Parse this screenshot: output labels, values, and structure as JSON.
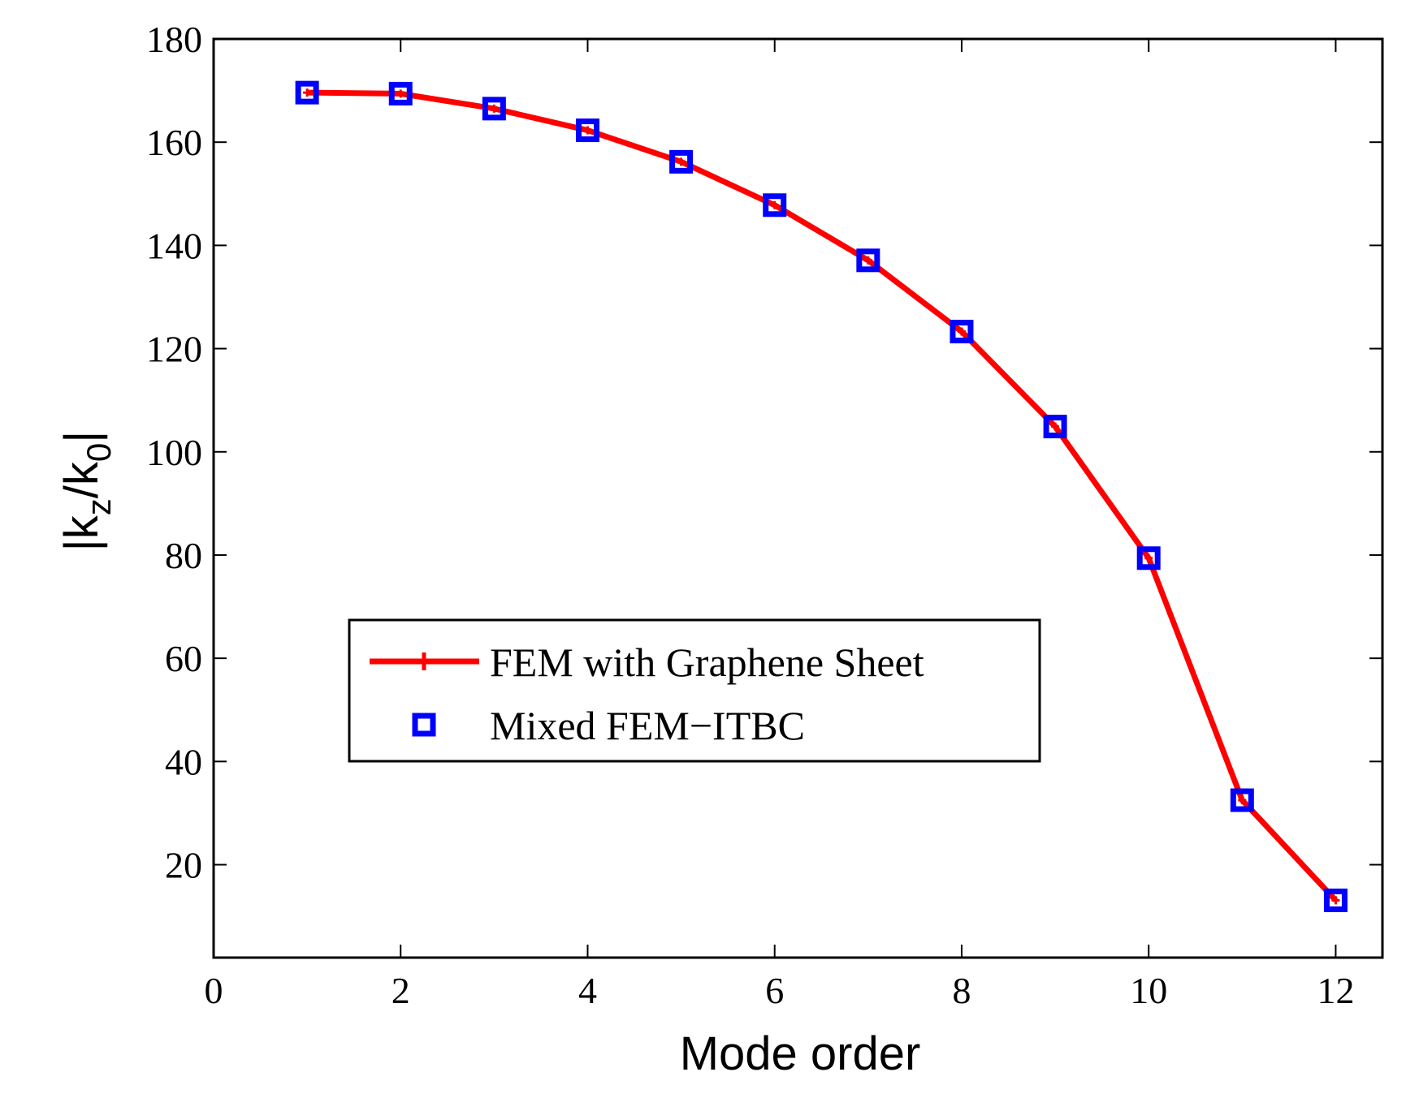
{
  "chart_data": {
    "type": "line",
    "title": "",
    "xlabel": "Mode order",
    "ylabel_main": "|k",
    "ylabel_sub1": "z",
    "ylabel_mid": "/k",
    "ylabel_sub2": "0",
    "ylabel_end": "|",
    "xlim": [
      0,
      12.5
    ],
    "ylim": [
      2,
      180
    ],
    "xticks": [
      0,
      2,
      4,
      6,
      8,
      10,
      12
    ],
    "yticks": [
      20,
      40,
      60,
      80,
      100,
      120,
      140,
      160,
      180
    ],
    "grid": false,
    "legend_position": "center-left",
    "series": [
      {
        "name": "FEM with Graphene Sheet",
        "color": "#ff0000",
        "marker": "plus",
        "x": [
          1,
          2,
          3,
          4,
          5,
          6,
          7,
          8,
          9,
          10,
          11,
          12
        ],
        "y": [
          169.6,
          169.4,
          166.5,
          162.3,
          156.2,
          147.8,
          137.1,
          123.3,
          104.9,
          79.4,
          32.5,
          13.1
        ]
      },
      {
        "name": "Mixed FEM−ITBC",
        "color": "#0000ff",
        "marker": "square",
        "x": [
          1,
          2,
          3,
          4,
          5,
          6,
          7,
          8,
          9,
          10,
          11,
          12
        ],
        "y": [
          169.6,
          169.4,
          166.5,
          162.3,
          156.2,
          147.8,
          137.1,
          123.3,
          104.9,
          79.4,
          32.5,
          13.1
        ]
      }
    ]
  }
}
